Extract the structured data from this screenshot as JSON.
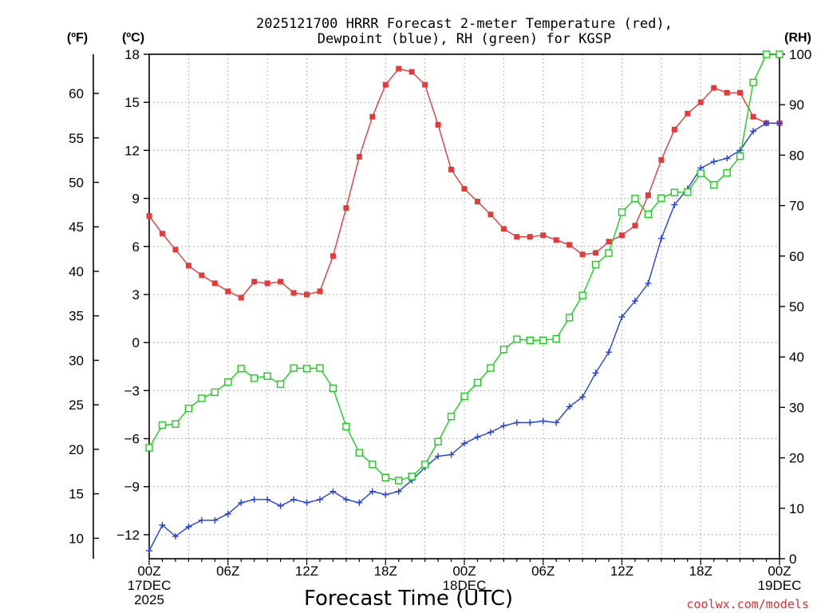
{
  "chart_data": {
    "type": "line",
    "title": [
      "2025121700 HRRR Forecast 2-meter Temperature (red),",
      "Dewpoint (blue), RH (green) for KGSP"
    ],
    "xlabel": "Forecast Time (UTC)",
    "credit": "coolwx.com/models",
    "units": {
      "f": "(ºF)",
      "c": "(ºC)",
      "rh": "(RH)"
    },
    "x_ticks": [
      {
        "hour": 0,
        "label": [
          "00Z",
          "17DEC",
          "2025"
        ]
      },
      {
        "hour": 6,
        "label": [
          "06Z"
        ]
      },
      {
        "hour": 12,
        "label": [
          "12Z"
        ]
      },
      {
        "hour": 18,
        "label": [
          "18Z"
        ]
      },
      {
        "hour": 24,
        "label": [
          "00Z",
          "18DEC"
        ]
      },
      {
        "hour": 30,
        "label": [
          "06Z"
        ]
      },
      {
        "hour": 36,
        "label": [
          "12Z"
        ]
      },
      {
        "hour": 42,
        "label": [
          "18Z"
        ]
      },
      {
        "hour": 48,
        "label": [
          "00Z",
          "19DEC"
        ]
      }
    ],
    "xlim": [
      0,
      48
    ],
    "axes": {
      "celsius": {
        "range": [
          -13.5,
          18
        ],
        "ticks": [
          -12,
          -9,
          -6,
          -3,
          0,
          3,
          6,
          9,
          12,
          15,
          18
        ],
        "tick_labels": [
          "−12",
          "−9",
          "−6",
          "−3",
          "0",
          "3",
          "6",
          "9",
          "12",
          "15",
          "18"
        ]
      },
      "fahrenheit": {
        "ticks": [
          10,
          15,
          20,
          25,
          30,
          35,
          40,
          45,
          50,
          55,
          60
        ]
      },
      "rh": {
        "range": [
          0,
          100
        ],
        "ticks": [
          0,
          10,
          20,
          30,
          40,
          50,
          60,
          70,
          80,
          90,
          100
        ]
      }
    },
    "grid": true,
    "series": [
      {
        "name": "Temperature",
        "axis": "celsius",
        "color": "#e83838",
        "marker": "filled-square",
        "values": [
          7.9,
          6.8,
          5.8,
          4.8,
          4.2,
          3.7,
          3.2,
          2.8,
          3.8,
          3.7,
          3.8,
          3.1,
          3.0,
          3.2,
          5.4,
          8.4,
          11.6,
          14.1,
          16.1,
          17.1,
          16.9,
          16.1,
          13.6,
          10.8,
          9.6,
          8.8,
          8.0,
          7.1,
          6.6,
          6.6,
          6.7,
          6.4,
          6.1,
          5.5,
          5.6,
          6.3,
          6.7,
          7.3,
          9.2,
          11.4,
          13.3,
          14.3,
          15.0,
          15.9,
          15.6,
          15.6,
          14.1,
          13.7,
          13.7
        ]
      },
      {
        "name": "Dewpoint",
        "axis": "celsius",
        "color": "#2040e0",
        "marker": "plus",
        "values": [
          -13.0,
          -11.4,
          -12.1,
          -11.5,
          -11.1,
          -11.1,
          -10.7,
          -10.0,
          -9.8,
          -9.8,
          -10.2,
          -9.8,
          -10.0,
          -9.8,
          -9.3,
          -9.8,
          -10.0,
          -9.3,
          -9.5,
          -9.3,
          -8.6,
          -7.8,
          -7.1,
          -7.0,
          -6.3,
          -5.9,
          -5.6,
          -5.2,
          -5.0,
          -5.0,
          -4.9,
          -5.0,
          -4.0,
          -3.4,
          -1.9,
          -0.6,
          1.6,
          2.6,
          3.7,
          6.5,
          8.6,
          9.6,
          10.9,
          11.3,
          11.5,
          12.0,
          13.2,
          13.7,
          13.7
        ]
      },
      {
        "name": "RH",
        "axis": "rh",
        "color": "#18d018",
        "marker": "open-square",
        "values": [
          22,
          26.5,
          26.7,
          29.8,
          31.8,
          33,
          35,
          37.7,
          35.8,
          36.2,
          34.6,
          37.8,
          37.7,
          37.8,
          33.8,
          26.2,
          21,
          18.7,
          16.1,
          15.5,
          16.3,
          18.7,
          23.2,
          28.2,
          32.2,
          34.9,
          37.8,
          41.5,
          43.5,
          43.3,
          43.3,
          43.6,
          47.8,
          52.2,
          58.3,
          60.6,
          68.7,
          71.4,
          68.3,
          71.5,
          72.6,
          72.7,
          76.4,
          74.1,
          76.5,
          79.8,
          94.4,
          100,
          100
        ]
      }
    ]
  }
}
